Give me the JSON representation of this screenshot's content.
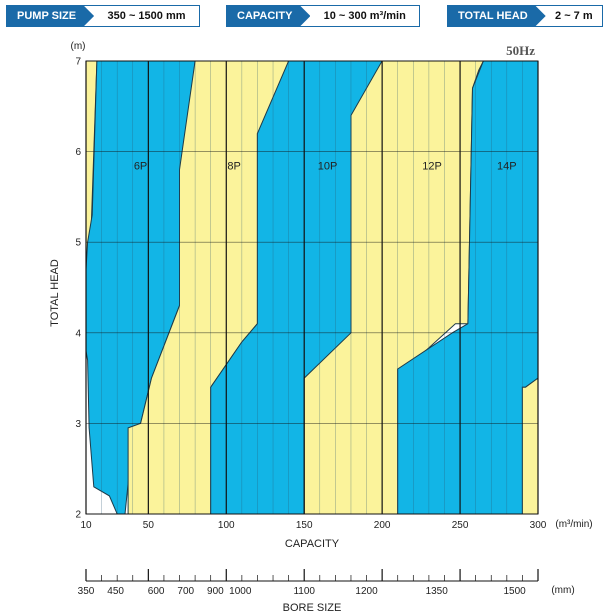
{
  "badges": [
    {
      "label": "PUMP SIZE",
      "value": "350 ~ 1500 mm"
    },
    {
      "label": "CAPACITY",
      "value": "10 ~ 300 m³/min"
    },
    {
      "label": "TOTAL HEAD",
      "value": "2 ~ 7 m"
    }
  ],
  "colors": {
    "blue": "#12b5e6",
    "yellow": "#fbf39b",
    "badge": "#1a6aa8",
    "white": "#ffffff"
  },
  "chart_data": {
    "type": "area",
    "frequency_label": "50Hz",
    "xlabel": "CAPACITY",
    "x_unit": "(m³/min)",
    "ylabel": "TOTAL HEAD",
    "y_unit": "(m)",
    "xlim": [
      10,
      300
    ],
    "ylim": [
      2,
      7
    ],
    "x_ticks": [
      10,
      50,
      100,
      150,
      200,
      250,
      300
    ],
    "y_ticks": [
      2,
      3,
      4,
      5,
      6,
      7
    ],
    "x_minor_step": 10,
    "grid": true,
    "regions": [
      {
        "name": "pre",
        "color": "yellow",
        "points": [
          [
            10,
            7
          ],
          [
            17,
            7
          ],
          [
            15,
            6
          ],
          [
            13,
            5
          ],
          [
            11,
            4
          ],
          [
            10,
            3.7
          ],
          [
            10,
            7
          ]
        ]
      },
      {
        "name": "6P",
        "label": "6P",
        "color": "blue",
        "label_at": [
          45,
          5.8
        ],
        "points": [
          [
            17,
            7
          ],
          [
            80,
            7
          ],
          [
            73,
            6
          ],
          [
            70,
            5
          ],
          [
            70,
            4.3
          ],
          [
            52,
            3.5
          ],
          [
            45,
            3.0
          ],
          [
            38,
            2.5
          ],
          [
            35,
            2
          ],
          [
            30,
            2
          ],
          [
            25,
            2.2
          ],
          [
            15,
            2.3
          ],
          [
            12,
            2.95
          ],
          [
            11,
            3.7
          ],
          [
            10,
            3.8
          ],
          [
            10,
            4.7
          ],
          [
            11,
            5
          ],
          [
            14,
            5.3
          ],
          [
            17,
            7
          ]
        ]
      },
      {
        "name": "8P",
        "label": "8P",
        "color": "yellow",
        "label_at": [
          105,
          5.8
        ],
        "points": [
          [
            80,
            7
          ],
          [
            140,
            7
          ],
          [
            130,
            6.4
          ],
          [
            120,
            6.2
          ],
          [
            120,
            4.1
          ],
          [
            110,
            3.9
          ],
          [
            90,
            3.4
          ],
          [
            90,
            2
          ],
          [
            37,
            2
          ],
          [
            37,
            2.95
          ],
          [
            45,
            3.0
          ],
          [
            52,
            3.5
          ],
          [
            70,
            4.3
          ],
          [
            70,
            5.8
          ],
          [
            80,
            7
          ]
        ]
      },
      {
        "name": "10P",
        "label": "10P",
        "color": "blue",
        "label_at": [
          165,
          5.8
        ],
        "points": [
          [
            140,
            7
          ],
          [
            200,
            7
          ],
          [
            195,
            6.7
          ],
          [
            192,
            6.4
          ],
          [
            192,
            4.0
          ],
          [
            182,
            4.0
          ],
          [
            152,
            3.5
          ],
          [
            150,
            3.5
          ],
          [
            150,
            2
          ],
          [
            90,
            2
          ],
          [
            90,
            3.4
          ],
          [
            110,
            3.9
          ],
          [
            120,
            4.1
          ],
          [
            120,
            6.2
          ],
          [
            140,
            7
          ]
        ]
      },
      {
        "name": "12P",
        "label": "12P",
        "color": "yellow",
        "label_at": [
          232,
          5.8
        ],
        "points": [
          [
            200,
            7
          ],
          [
            265,
            7
          ],
          [
            262,
            6.9
          ],
          [
            258,
            6.7
          ],
          [
            255,
            4.1
          ],
          [
            247,
            4.1
          ],
          [
            215,
            3.6
          ],
          [
            210,
            3.6
          ],
          [
            210,
            2
          ],
          [
            150,
            2
          ],
          [
            150,
            3.5
          ],
          [
            180,
            4.0
          ],
          [
            180,
            6.4
          ],
          [
            200,
            7
          ]
        ]
      },
      {
        "name": "14P",
        "label": "14P",
        "color": "blue",
        "label_at": [
          280,
          5.8
        ],
        "points": [
          [
            265,
            7
          ],
          [
            300,
            7
          ],
          [
            300,
            3.5
          ],
          [
            292,
            3.4
          ],
          [
            290,
            3.4
          ],
          [
            290,
            2
          ],
          [
            210,
            2
          ],
          [
            210,
            3.6
          ],
          [
            245,
            4.0
          ],
          [
            255,
            4.1
          ],
          [
            258,
            6.7
          ],
          [
            265,
            7
          ]
        ]
      },
      {
        "name": "post",
        "color": "yellow",
        "points": [
          [
            290,
            2
          ],
          [
            300,
            2
          ],
          [
            300,
            3.5
          ],
          [
            292,
            3.4
          ],
          [
            290,
            3.4
          ],
          [
            290,
            2
          ]
        ]
      }
    ],
    "bore_size": {
      "label": "BORE SIZE",
      "unit": "(mm)",
      "ticks": [
        {
          "label": "350",
          "at": 10
        },
        {
          "label": "450",
          "at": 29
        },
        {
          "label": "600",
          "at": 55
        },
        {
          "label": "700",
          "at": 74
        },
        {
          "label": "900",
          "at": 93
        },
        {
          "label": "1000",
          "at": 109
        },
        {
          "label": "1100",
          "at": 150
        },
        {
          "label": "1200",
          "at": 190
        },
        {
          "label": "1350",
          "at": 235
        },
        {
          "label": "1500",
          "at": 285
        }
      ],
      "major_at": [
        10,
        50,
        100,
        150,
        200,
        250,
        300
      ]
    }
  }
}
